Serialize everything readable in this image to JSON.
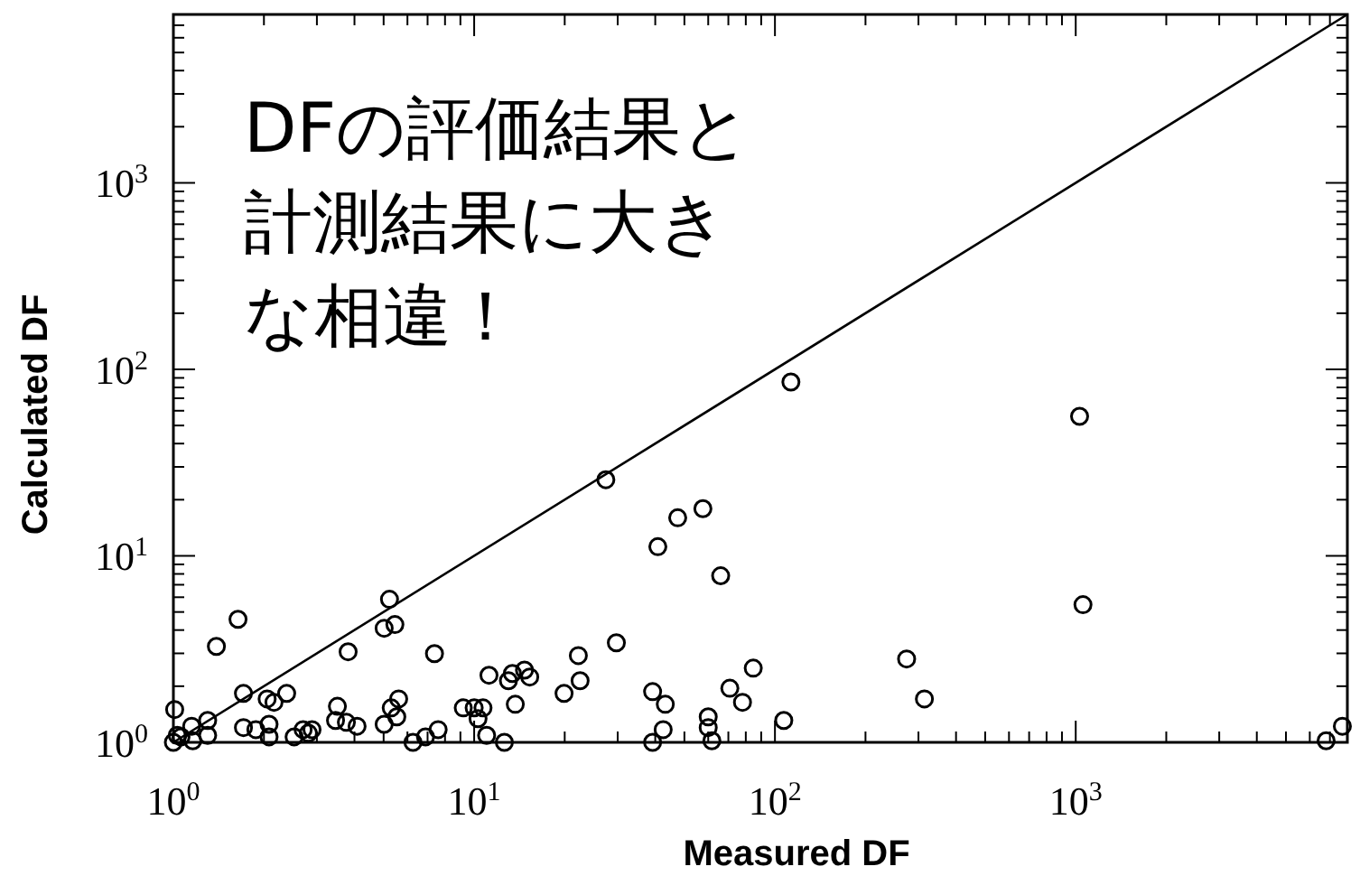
{
  "chart_data": {
    "type": "scatter",
    "xlabel": "Measured DF",
    "ylabel": "Calculated DF",
    "log": "xy",
    "xlim": [
      1,
      8000
    ],
    "ylim": [
      1,
      8000
    ],
    "xticks": [
      {
        "value": 1,
        "label": "10$^{0}$"
      },
      {
        "value": 10,
        "label": "10$^{1}$"
      },
      {
        "value": 100,
        "label": "10$^{2}$"
      },
      {
        "value": 1000,
        "label": "10$^{3}$"
      }
    ],
    "yticks": [
      {
        "value": 1,
        "label": "10$^{0}$"
      },
      {
        "value": 10,
        "label": "10$^{1}$"
      },
      {
        "value": 100,
        "label": "10$^{2}$"
      },
      {
        "value": 1000,
        "label": "10$^{3}$"
      }
    ],
    "annotations": [
      "DFの評価結果と計測結果に大きな相違！"
    ],
    "series": [
      {
        "marker": "circle",
        "color": "#000000",
        "x": [
          1.0,
          1.06,
          1.03,
          1.16,
          1.01,
          1.15,
          1.3,
          1.3,
          1.39,
          1.64,
          1.71,
          1.71,
          1.88,
          2.05,
          2.08,
          2.08,
          2.16,
          2.38,
          2.52,
          2.7,
          2.81,
          2.89,
          3.51,
          3.46,
          3.76,
          4.08,
          3.81,
          5.02,
          5.23,
          5.02,
          5.45,
          5.3,
          5.61,
          5.53,
          6.26,
          6.89,
          7.59,
          7.38,
          9.2,
          10,
          10.7,
          10.3,
          11,
          11.2,
          12.6,
          13,
          13.4,
          14.7,
          15.3,
          13.7,
          19.9,
          22.2,
          22.5,
          29.7,
          39.2,
          39.2,
          43.2,
          42.5,
          40.8,
          66,
          70.8,
          78,
          84.7,
          60,
          60,
          61.7,
          107,
          274,
          314,
          1057,
          6800,
          7700,
          113,
          1030,
          57.6,
          27.4,
          47.5
        ],
        "values": [
          1.0,
          1.07,
          1.09,
          1.02,
          1.5,
          1.22,
          1.31,
          1.09,
          3.27,
          4.57,
          1.83,
          1.2,
          1.17,
          1.71,
          1.25,
          1.07,
          1.64,
          1.83,
          1.07,
          1.17,
          1.12,
          1.17,
          1.56,
          1.31,
          1.28,
          1.22,
          3.06,
          1.25,
          5.85,
          4.09,
          4.28,
          1.53,
          1.71,
          1.37,
          1.0,
          1.07,
          1.17,
          2.99,
          1.53,
          1.53,
          1.53,
          1.34,
          1.09,
          2.29,
          1.0,
          2.14,
          2.34,
          2.44,
          2.24,
          1.6,
          1.83,
          2.92,
          2.14,
          3.42,
          1.87,
          1.0,
          1.6,
          1.17,
          11.2,
          7.82,
          1.95,
          1.64,
          2.5,
          1.37,
          1.2,
          1.02,
          1.31,
          2.8,
          1.71,
          5.47,
          1.02,
          1.22,
          85.5,
          56,
          17.9,
          25.6,
          16
        ]
      },
      {
        "type": "line",
        "color": "#000000",
        "x": [
          1,
          8000
        ],
        "values": [
          1,
          8000
        ]
      }
    ]
  }
}
